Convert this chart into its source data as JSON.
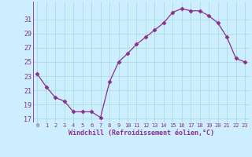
{
  "hours": [
    0,
    1,
    2,
    3,
    4,
    5,
    6,
    7,
    8,
    9,
    10,
    11,
    12,
    13,
    14,
    15,
    16,
    17,
    18,
    19,
    20,
    21,
    22,
    23
  ],
  "values": [
    23.3,
    21.5,
    20.0,
    19.5,
    18.0,
    18.0,
    18.0,
    17.2,
    22.2,
    25.0,
    26.2,
    27.5,
    28.5,
    29.5,
    30.5,
    32.0,
    32.5,
    32.2,
    32.2,
    31.5,
    30.5,
    28.5,
    25.5,
    25.0
  ],
  "line_color": "#8B2F8B",
  "marker": "D",
  "marker_size": 2.5,
  "bg_color": "#cceeff",
  "grid_color": "#aadddd",
  "tick_color": "#8B2F8B",
  "label_color": "#8B2F8B",
  "xlabel": "Windchill (Refroidissement éolien,°C)",
  "ylim": [
    16.5,
    33.5
  ],
  "yticks": [
    17,
    19,
    21,
    23,
    25,
    27,
    29,
    31
  ],
  "xlim": [
    -0.5,
    23.5
  ],
  "xticks": [
    0,
    1,
    2,
    3,
    4,
    5,
    6,
    7,
    8,
    9,
    10,
    11,
    12,
    13,
    14,
    15,
    16,
    17,
    18,
    19,
    20,
    21,
    22,
    23
  ]
}
